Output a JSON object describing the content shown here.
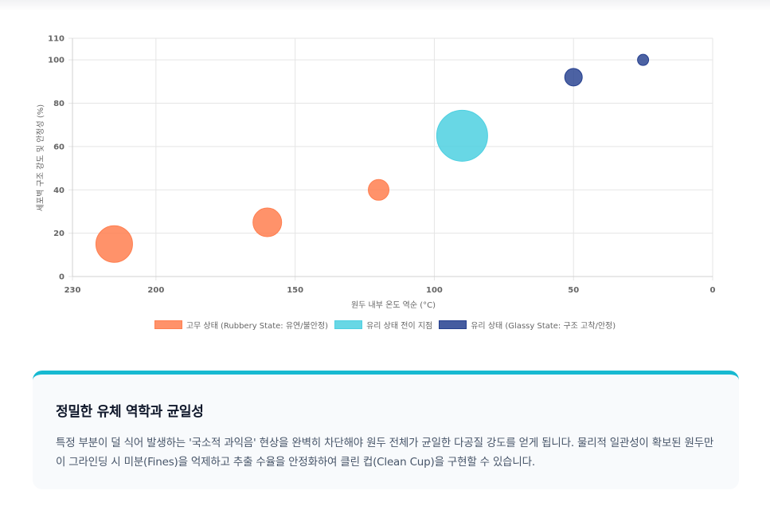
{
  "chart_data": {
    "type": "bubble",
    "xlabel": "원두 내부 온도 역순 (°C)",
    "ylabel": "세포벽 구조 강도 및 안정성 (%)",
    "xlim": [
      230,
      0
    ],
    "ylim": [
      0,
      110
    ],
    "x_ticks": [
      "230",
      "200",
      "150",
      "100",
      "50",
      "0"
    ],
    "y_ticks": [
      "0",
      "20",
      "40",
      "60",
      "80",
      "100",
      "110"
    ],
    "grid": true,
    "legend_position": "bottom",
    "series": [
      {
        "name": "고무 상태 (Rubbery State: 유연/불안정)",
        "color": "#ff7f50",
        "points": [
          {
            "x": 215,
            "y": 15,
            "r": 23
          },
          {
            "x": 160,
            "y": 25,
            "r": 18
          },
          {
            "x": 120,
            "y": 40,
            "r": 13
          }
        ]
      },
      {
        "name": "유리 상태 전이 지점",
        "color": "#4dd0e1",
        "points": [
          {
            "x": 90,
            "y": 65,
            "r": 32
          }
        ]
      },
      {
        "name": "유리 상태 (Glassy State: 구조 고착/안정)",
        "color": "#253f8f",
        "points": [
          {
            "x": 50,
            "y": 92,
            "r": 11
          },
          {
            "x": 25,
            "y": 100,
            "r": 7
          }
        ]
      }
    ]
  },
  "card": {
    "title": "정밀한 유체 역학과 균일성",
    "body": "특정 부분이 덜 식어 발생하는 '국소적 과익음' 현상을 완벽히 차단해야 원두 전체가 균일한 다공질 강도를 얻게 됩니다. 물리적 일관성이 확보된 원두만이 그라인딩 시 미분(Fines)을 억제하고 추출 수율을 안정화하여 클린 컵(Clean Cup)을 구현할 수 있습니다."
  }
}
